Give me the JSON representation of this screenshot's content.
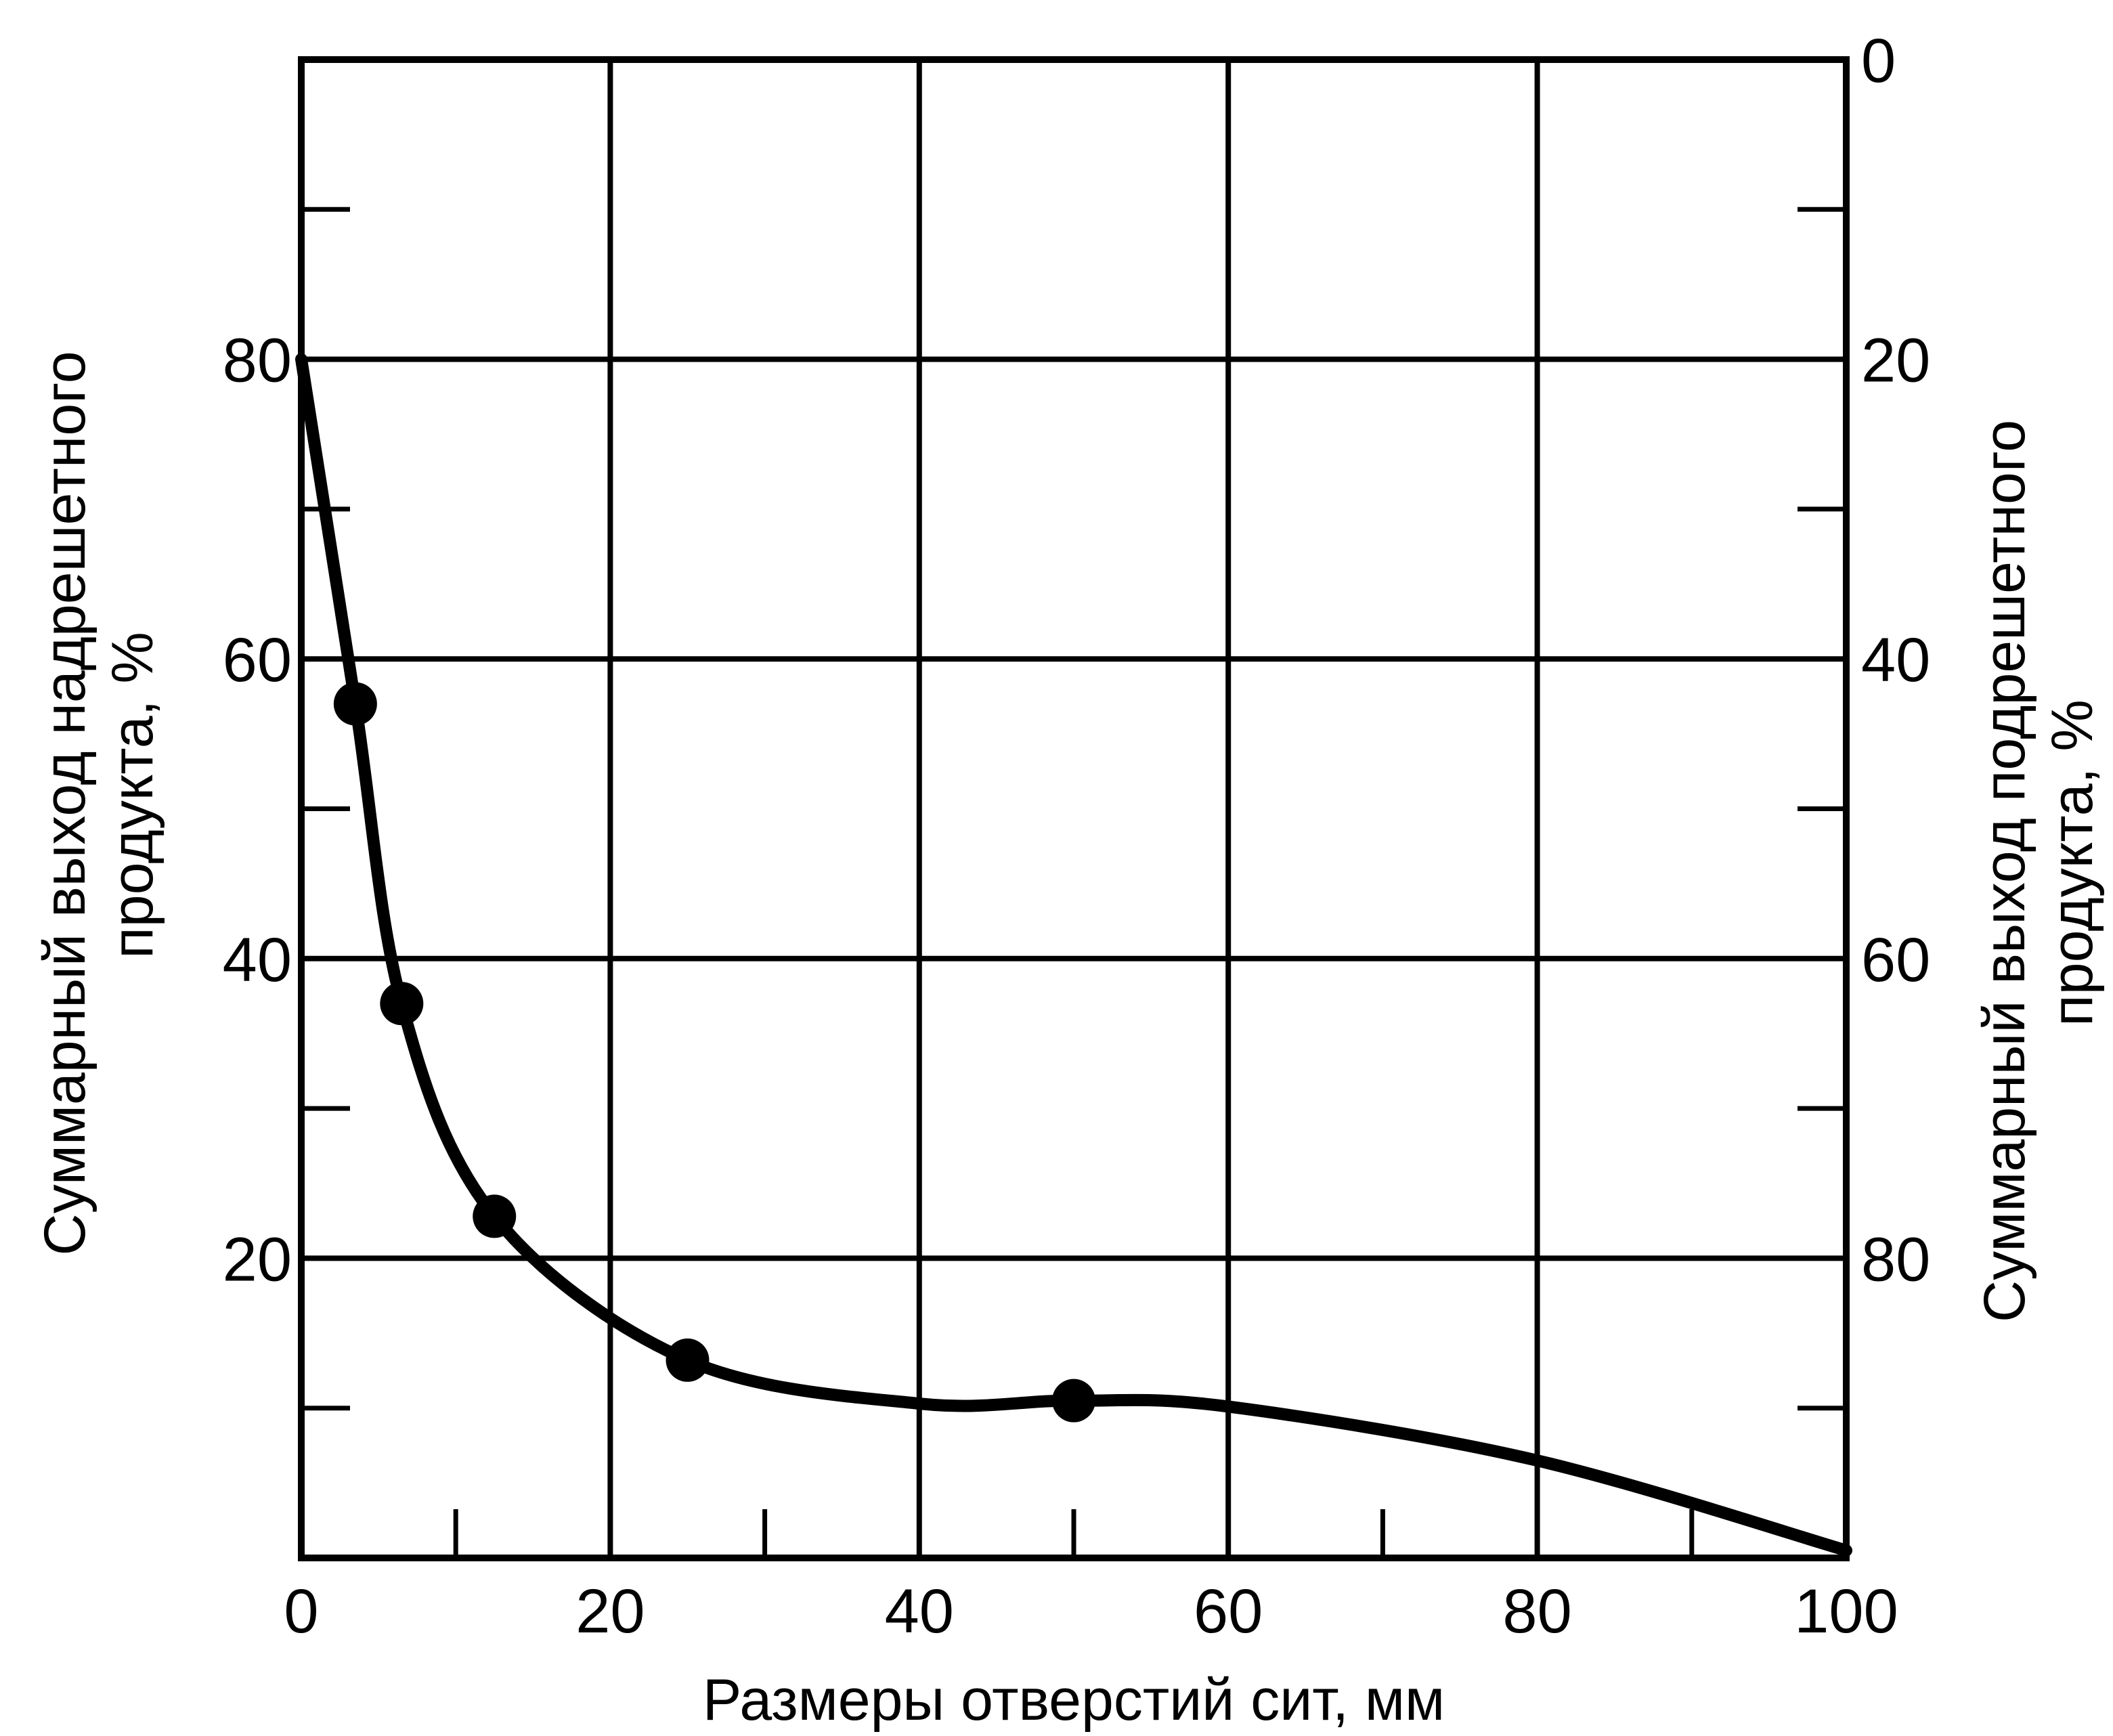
{
  "chart_data": {
    "type": "line",
    "title": "",
    "xlabel": "Размеры отверстий сит, мм",
    "ylabel_left": [
      "Суммарный выход надрешетного",
      "продукта, %"
    ],
    "ylabel_right": [
      "Суммарный выход подрешетного",
      "продукта, %"
    ],
    "xlim": [
      0,
      100
    ],
    "ylim": [
      0,
      100
    ],
    "x_ticks": [
      0,
      20,
      40,
      60,
      80,
      100
    ],
    "x_minor_ticks": [
      10,
      30,
      50,
      70,
      90
    ],
    "y_left_ticks": [
      20,
      40,
      60,
      80
    ],
    "y_left_tick_labels": [
      "20",
      "40",
      "60",
      "80"
    ],
    "y_right_ticks": [
      100,
      80,
      60,
      40,
      20
    ],
    "y_right_tick_labels": [
      "0",
      "20",
      "40",
      "60",
      "80"
    ],
    "y_minor_ticks": [
      10,
      30,
      50,
      70,
      90
    ],
    "grid": true,
    "right_axis_note": "right axis = 100 − left axis",
    "series": [
      {
        "name": "",
        "curve": [
          {
            "x": 0,
            "y": 80
          },
          {
            "x": 3.5,
            "y": 57
          },
          {
            "x": 6.5,
            "y": 37
          },
          {
            "x": 12.5,
            "y": 22.8
          },
          {
            "x": 25,
            "y": 13.2
          },
          {
            "x": 40,
            "y": 10.3
          },
          {
            "x": 50,
            "y": 10.5
          },
          {
            "x": 60,
            "y": 10.1
          },
          {
            "x": 80,
            "y": 6.5
          },
          {
            "x": 100,
            "y": 0.5
          }
        ],
        "points": [
          {
            "x": 3.5,
            "y": 57
          },
          {
            "x": 6.5,
            "y": 37
          },
          {
            "x": 12.5,
            "y": 22.8
          },
          {
            "x": 25,
            "y": 13.2
          },
          {
            "x": 50,
            "y": 10.5
          }
        ]
      }
    ]
  }
}
